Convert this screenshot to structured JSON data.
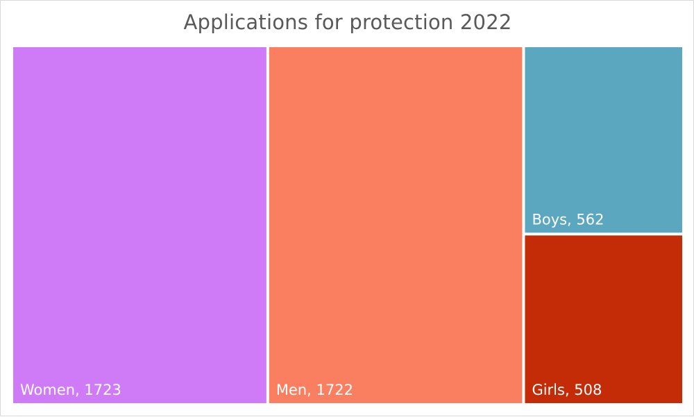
{
  "chart_data": {
    "type": "treemap",
    "title": "Applications for protection 2022",
    "categories": [
      "Women",
      "Men",
      "Boys",
      "Girls"
    ],
    "values": [
      1723,
      1722,
      562,
      508
    ],
    "labels": [
      "Women, 1723",
      "Men, 1722",
      "Boys, 562",
      "Girls, 508"
    ],
    "colors": [
      "#cf7bf7",
      "#f97f60",
      "#5ba7c0",
      "#c42c07"
    ]
  }
}
